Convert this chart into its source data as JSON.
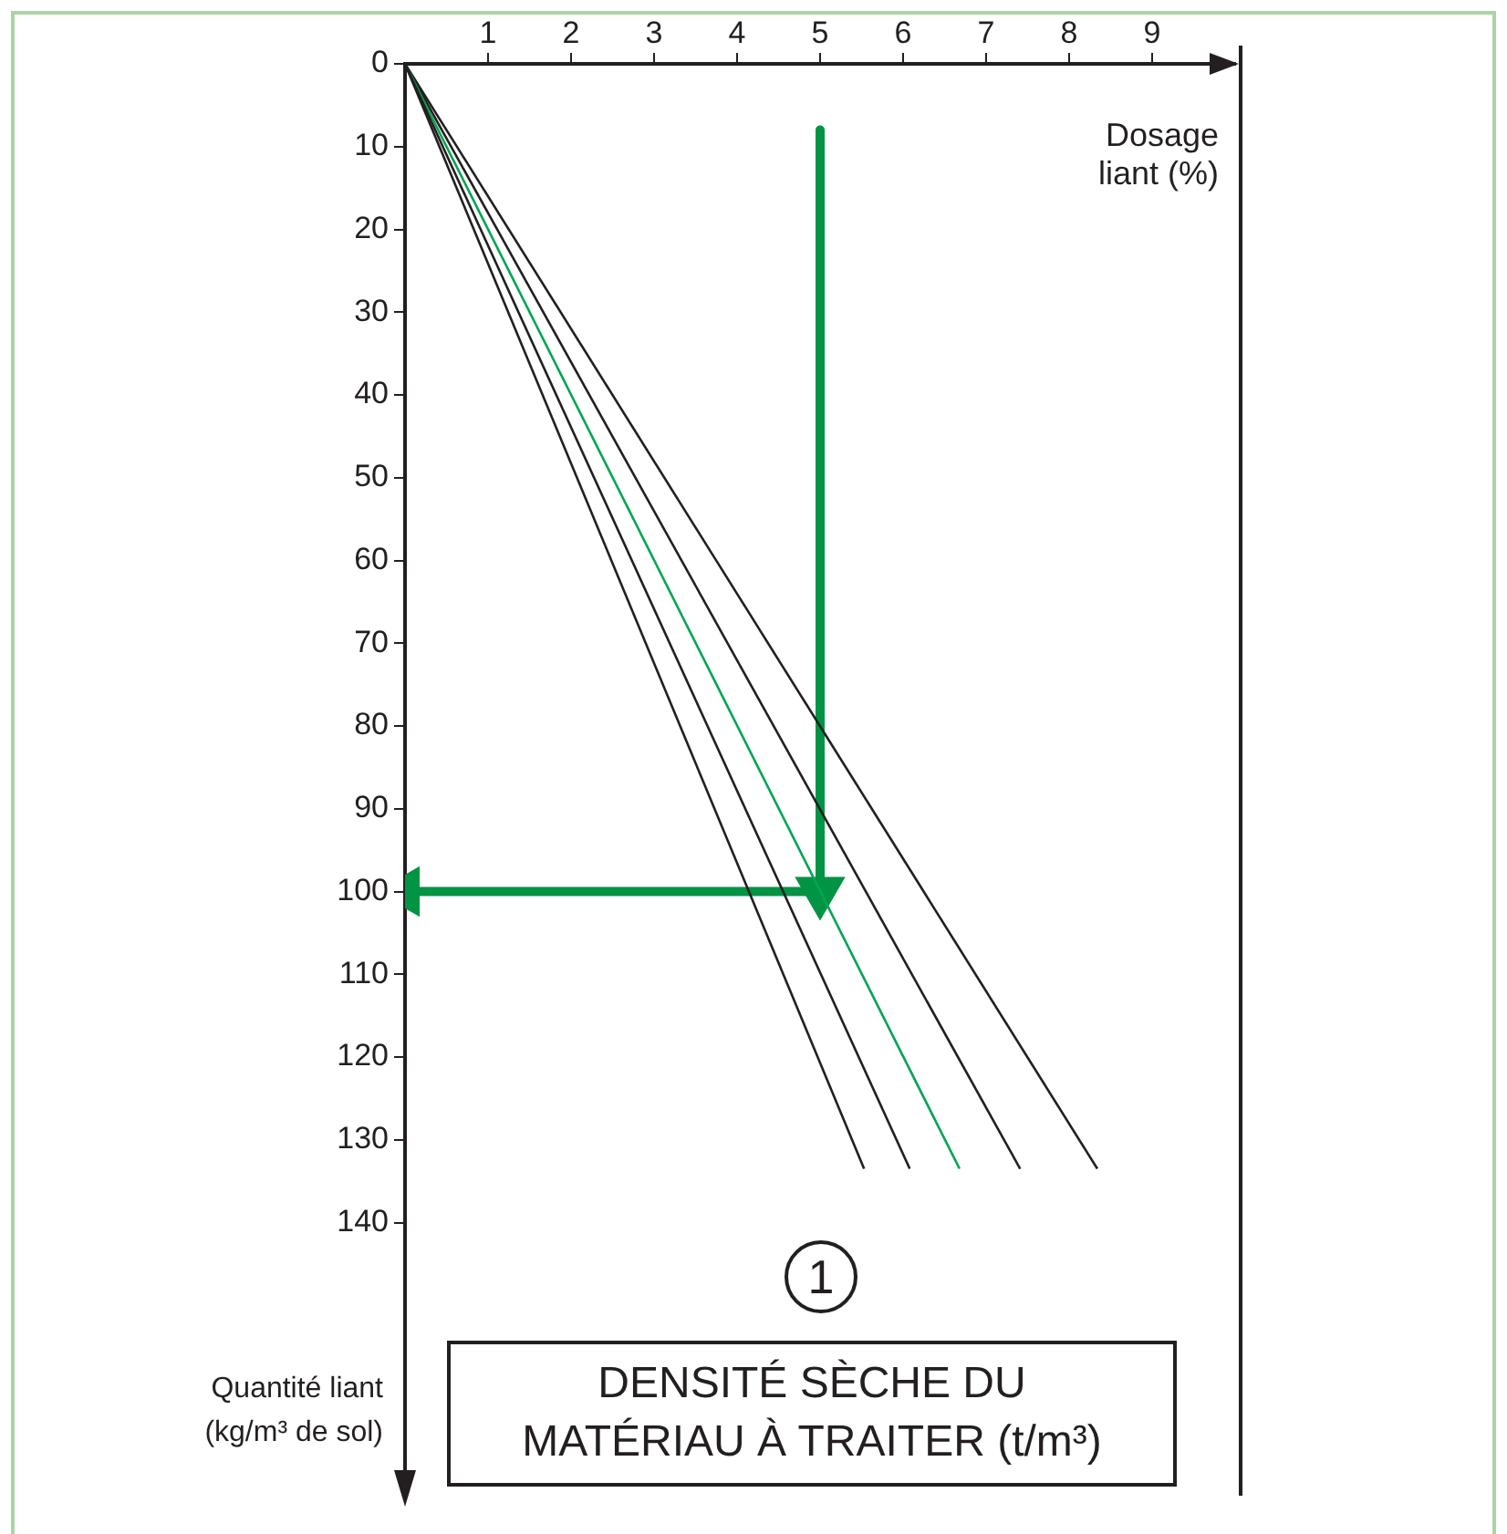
{
  "chart_data": {
    "type": "line",
    "xlabel": "Dosage liant (%)",
    "ylabel": "Quantité liant (kg/m³ de sol)",
    "annotations": [
      "1",
      "DENSITÉ SÈCHE DU MATÉRIAU À TRAITER (t/m³)"
    ],
    "xlim": [
      0,
      10
    ],
    "xticks": [
      1,
      2,
      3,
      4,
      5,
      6,
      7,
      8,
      9
    ],
    "ylim": [
      173,
      0
    ],
    "yticks": [
      0,
      10,
      20,
      30,
      40,
      50,
      60,
      70,
      80,
      90,
      100,
      110,
      120,
      130,
      140
    ],
    "grid": false,
    "legend": false,
    "series": [
      {
        "x": [
          0,
          5.53
        ],
        "values": [
          0,
          133.5
        ],
        "color": "#231f20"
      },
      {
        "x": [
          0,
          6.08
        ],
        "values": [
          0,
          133.5
        ],
        "color": "#231f20"
      },
      {
        "x": [
          0,
          6.68
        ],
        "values": [
          0,
          133.5
        ],
        "color": "#00a651"
      },
      {
        "x": [
          0,
          7.41
        ],
        "values": [
          0,
          133.5
        ],
        "color": "#231f20"
      },
      {
        "x": [
          0,
          8.34
        ],
        "values": [
          0,
          133.5
        ],
        "color": "#231f20"
      },
      {
        "x": [
          5,
          5
        ],
        "values": [
          8,
          100
        ],
        "color": "#009444",
        "marker": "triangle"
      },
      {
        "x": [
          5,
          0
        ],
        "values": [
          100,
          100
        ],
        "color": "#009444",
        "marker": "triangle"
      }
    ]
  }
}
